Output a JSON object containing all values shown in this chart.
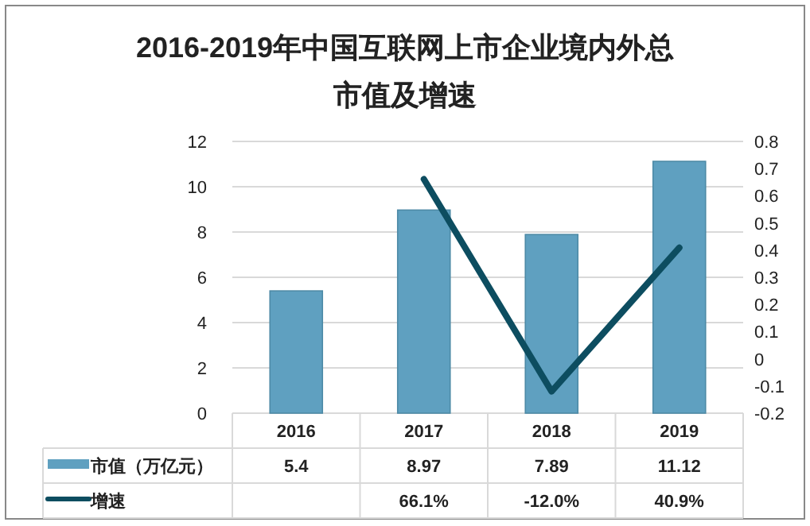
{
  "chart_data": {
    "type": "bar",
    "title": "2016-2019年中国互联网上市企业境内外总市值及增速",
    "categories": [
      "2016",
      "2017",
      "2018",
      "2019"
    ],
    "series": [
      {
        "name": "市值（万亿元）",
        "color": "#5fa0c0",
        "values": [
          5.4,
          8.97,
          7.89,
          11.12
        ],
        "value_labels": [
          "5.4",
          "8.97",
          "7.89",
          "11.12"
        ]
      },
      {
        "name": "增速",
        "type": "line",
        "axis": "y2",
        "color": "#0d4d60",
        "values": [
          null,
          0.661,
          -0.12,
          0.409
        ],
        "value_labels": [
          null,
          "66.1%",
          "-12.0%",
          "40.9%"
        ]
      }
    ],
    "ylim": [
      0,
      12
    ],
    "yticks": [
      0,
      2,
      4,
      6,
      8,
      10,
      12
    ],
    "y2lim": [
      -0.2,
      0.8
    ],
    "y2ticks": [
      -0.2,
      -0.1,
      0,
      0.1,
      0.2,
      0.3,
      0.4,
      0.5,
      0.6,
      0.7,
      0.8
    ],
    "grid": "y",
    "legend": "bottom",
    "marker": "none",
    "line_style": "solid"
  }
}
